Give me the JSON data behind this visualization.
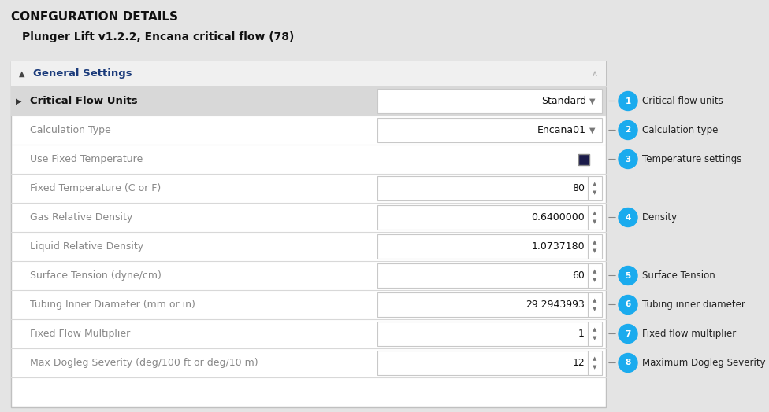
{
  "title": "CONFGURATION DETAILS",
  "subtitle": "Plunger Lift v1.2.2, Encana critical flow (78)",
  "section_header": "General Settings",
  "bg_color": "#e4e4e4",
  "panel_bg": "#ffffff",
  "panel_border": "#c0c0c0",
  "header_bg": "#f0f0f0",
  "row_highlight_bg": "#d8d8d8",
  "rows": [
    {
      "label": "Critical Flow Units",
      "value": "Standard",
      "has_dropdown": true,
      "has_spinner": false,
      "highlight": true,
      "annotation_num": 1,
      "annotation_text": "Critical flow units",
      "is_checkbox": false
    },
    {
      "label": "Calculation Type",
      "value": "Encana01",
      "has_dropdown": true,
      "has_spinner": false,
      "highlight": false,
      "annotation_num": 2,
      "annotation_text": "Calculation type",
      "is_checkbox": false
    },
    {
      "label": "Use Fixed Temperature",
      "value": "",
      "has_dropdown": false,
      "has_spinner": false,
      "highlight": false,
      "annotation_num": 3,
      "annotation_text": "Temperature settings",
      "is_checkbox": true
    },
    {
      "label": "Fixed Temperature (C or F)",
      "value": "80",
      "has_dropdown": false,
      "has_spinner": true,
      "highlight": false,
      "annotation_num": null,
      "annotation_text": null,
      "is_checkbox": false
    },
    {
      "label": "Gas Relative Density",
      "value": "0.6400000",
      "has_dropdown": false,
      "has_spinner": true,
      "highlight": false,
      "annotation_num": 4,
      "annotation_text": "Density",
      "is_checkbox": false
    },
    {
      "label": "Liquid Relative Density",
      "value": "1.0737180",
      "has_dropdown": false,
      "has_spinner": true,
      "highlight": false,
      "annotation_num": null,
      "annotation_text": null,
      "is_checkbox": false
    },
    {
      "label": "Surface Tension (dyne/cm)",
      "value": "60",
      "has_dropdown": false,
      "has_spinner": true,
      "highlight": false,
      "annotation_num": 5,
      "annotation_text": "Surface Tension",
      "is_checkbox": false
    },
    {
      "label": "Tubing Inner Diameter (mm or in)",
      "value": "29.2943993",
      "has_dropdown": false,
      "has_spinner": true,
      "highlight": false,
      "annotation_num": 6,
      "annotation_text": "Tubing inner diameter",
      "is_checkbox": false
    },
    {
      "label": "Fixed Flow Multiplier",
      "value": "1",
      "has_dropdown": false,
      "has_spinner": true,
      "highlight": false,
      "annotation_num": 7,
      "annotation_text": "Fixed flow multiplier",
      "is_checkbox": false
    },
    {
      "label": "Max Dogleg Severity (deg/100 ft or deg/10 m)",
      "value": "12",
      "has_dropdown": false,
      "has_spinner": true,
      "highlight": false,
      "annotation_num": 8,
      "annotation_text": "Maximum Dogleg Severity",
      "is_checkbox": false
    }
  ],
  "annotation_circle_color": "#1aabee",
  "annotation_text_color": "#222222",
  "label_color": "#888888",
  "label_highlight_color": "#111111",
  "value_color": "#111111",
  "section_color": "#1a3a7a",
  "title_color": "#111111",
  "subtitle_color": "#111111",
  "divider_color": "#d8d8d8",
  "spinner_color": "#777777",
  "field_border_color": "#c8c8c8"
}
